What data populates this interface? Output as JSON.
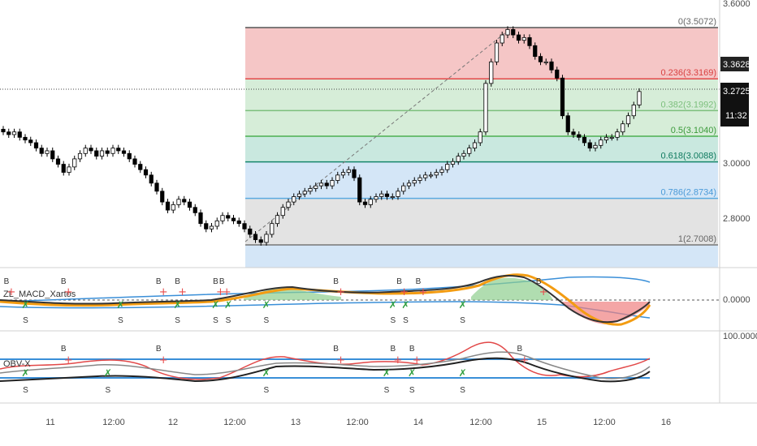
{
  "indicators": {
    "macd_title": "ZL_MACD_Xartos",
    "obv_title": "OBV-X"
  },
  "price_tags": {
    "upper": "3.3628",
    "current": "3.2725",
    "countdown": "11:32"
  },
  "colors": {
    "up": "#ffffff",
    "down": "#000000",
    "fib_red": "#f5c6c6",
    "fib_green": "#d6edd8",
    "fib_teal": "#c9e8df",
    "fib_blue": "#d4e6f7",
    "fib_gray": "#e3e3e3",
    "macd_orange": "#f39c12",
    "macd_line": "#333333",
    "band_blue": "#3a8fd8",
    "buy_marker": "#e84c4c",
    "sell_marker": "#2e9e3e"
  },
  "chart_data": [
    {
      "type": "candlestick",
      "name": "price",
      "y_ticks": [
        "3.6000",
        "3.0000",
        "2.8000"
      ],
      "ylim": [
        2.66,
        3.6
      ],
      "x_ticks": [
        "11",
        "12:00",
        "12",
        "12:00",
        "13",
        "12:00",
        "14",
        "12:00",
        "15",
        "12:00",
        "16"
      ],
      "close_path": [
        3.12,
        3.11,
        3.12,
        3.1,
        3.09,
        3.08,
        3.06,
        3.04,
        3.05,
        3.02,
        3.0,
        2.97,
        2.99,
        3.02,
        3.04,
        3.06,
        3.05,
        3.03,
        3.05,
        3.04,
        3.06,
        3.05,
        3.04,
        3.02,
        3.0,
        2.98,
        2.96,
        2.93,
        2.9,
        2.86,
        2.83,
        2.85,
        2.87,
        2.86,
        2.84,
        2.82,
        2.78,
        2.76,
        2.77,
        2.79,
        2.81,
        2.8,
        2.79,
        2.78,
        2.76,
        2.74,
        2.72,
        2.71,
        2.74,
        2.78,
        2.81,
        2.84,
        2.86,
        2.88,
        2.89,
        2.9,
        2.91,
        2.92,
        2.93,
        2.92,
        2.94,
        2.96,
        2.97,
        2.98,
        2.95,
        2.86,
        2.85,
        2.87,
        2.88,
        2.89,
        2.88,
        2.88,
        2.9,
        2.92,
        2.93,
        2.94,
        2.95,
        2.96,
        2.96,
        2.97,
        2.98,
        3.0,
        3.01,
        3.03,
        3.04,
        3.06,
        3.08,
        3.12,
        3.3,
        3.38,
        3.45,
        3.48,
        3.5,
        3.48,
        3.46,
        3.47,
        3.44,
        3.4,
        3.38,
        3.38,
        3.35,
        3.32,
        3.18,
        3.12,
        3.11,
        3.1,
        3.08,
        3.06,
        3.07,
        3.09,
        3.1,
        3.1,
        3.12,
        3.15,
        3.18,
        3.22,
        3.27
      ],
      "fibonacci": [
        {
          "level": "0",
          "price": 3.5072,
          "label": "0(3.5072)"
        },
        {
          "level": "0.236",
          "price": 3.3169,
          "label": "0.236(3.3169)"
        },
        {
          "level": "0.382",
          "price": 3.1992,
          "label": "0.382(3.1992)"
        },
        {
          "level": "0.5",
          "price": 3.104,
          "label": "0.5(3.1040)"
        },
        {
          "level": "0.618",
          "price": 3.0088,
          "label": "0.618(3.0088)"
        },
        {
          "level": "0.786",
          "price": 2.8734,
          "label": "0.786(2.8734)"
        },
        {
          "level": "1",
          "price": 2.7008,
          "label": "1(2.7008)"
        }
      ]
    },
    {
      "type": "line",
      "name": "ZL_MACD_Xartos",
      "y_ticks": [
        "0.0000"
      ],
      "signals": [
        {
          "label": "B",
          "pos": 0.0,
          "side": "top"
        },
        {
          "label": "S",
          "pos": 0.03,
          "side": "bottom"
        },
        {
          "label": "B",
          "pos": 0.09,
          "side": "top"
        },
        {
          "label": "S",
          "pos": 0.18,
          "side": "bottom"
        },
        {
          "label": "B",
          "pos": 0.24,
          "side": "top"
        },
        {
          "label": "B",
          "pos": 0.27,
          "side": "top"
        },
        {
          "label": "S",
          "pos": 0.27,
          "side": "bottom"
        },
        {
          "label": "B",
          "pos": 0.33,
          "side": "top"
        },
        {
          "label": "S",
          "pos": 0.33,
          "side": "bottom"
        },
        {
          "label": "B",
          "pos": 0.34,
          "side": "top"
        },
        {
          "label": "S",
          "pos": 0.35,
          "side": "bottom"
        },
        {
          "label": "S",
          "pos": 0.41,
          "side": "bottom"
        },
        {
          "label": "B",
          "pos": 0.52,
          "side": "top"
        },
        {
          "label": "B",
          "pos": 0.62,
          "side": "top"
        },
        {
          "label": "S",
          "pos": 0.61,
          "side": "bottom"
        },
        {
          "label": "B",
          "pos": 0.65,
          "side": "top"
        },
        {
          "label": "S",
          "pos": 0.63,
          "side": "bottom"
        },
        {
          "label": "S",
          "pos": 0.72,
          "side": "bottom"
        },
        {
          "label": "B",
          "pos": 0.84,
          "side": "top"
        }
      ]
    },
    {
      "type": "line",
      "name": "OBV-X",
      "y_ticks": [
        "100.0000"
      ],
      "signals": [
        {
          "label": "B",
          "pos": 0.09,
          "side": "top"
        },
        {
          "label": "S",
          "pos": 0.03,
          "side": "bottom"
        },
        {
          "label": "S",
          "pos": 0.16,
          "side": "bottom"
        },
        {
          "label": "B",
          "pos": 0.24,
          "side": "top"
        },
        {
          "label": "S",
          "pos": 0.41,
          "side": "bottom"
        },
        {
          "label": "B",
          "pos": 0.52,
          "side": "top"
        },
        {
          "label": "S",
          "pos": 0.6,
          "side": "bottom"
        },
        {
          "label": "B",
          "pos": 0.61,
          "side": "top"
        },
        {
          "label": "B",
          "pos": 0.64,
          "side": "top"
        },
        {
          "label": "S",
          "pos": 0.64,
          "side": "bottom"
        },
        {
          "label": "S",
          "pos": 0.72,
          "side": "bottom"
        },
        {
          "label": "B",
          "pos": 0.81,
          "side": "top"
        }
      ]
    }
  ]
}
